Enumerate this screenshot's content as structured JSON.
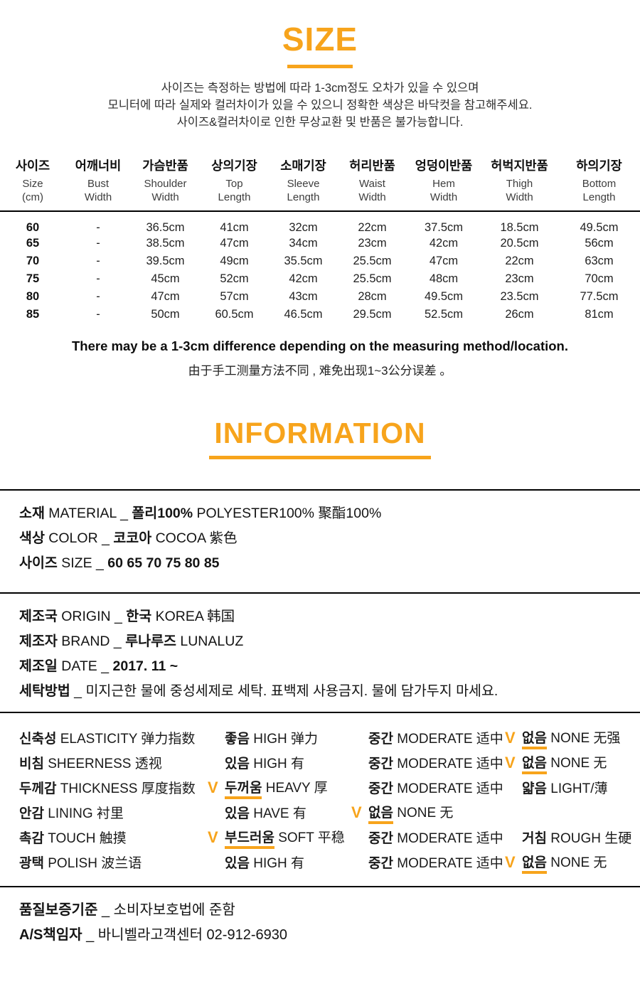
{
  "accent_color": "#F7A41C",
  "size_section": {
    "title": "SIZE",
    "notes": [
      "사이즈는 측정하는 방법에 따라 1-3cm정도 오차가 있을 수 있으며",
      "모니터에 따라 실제와 컬러차이가 있을 수 있으니 정확한 색상은 바닥컷을 참고해주세요.",
      "사이즈&컬러차이로 인한 무상교환 및 반품은 불가능합니다."
    ]
  },
  "size_table": {
    "columns": [
      {
        "ko": "사이즈",
        "en": [
          "Size",
          "(cm)"
        ]
      },
      {
        "ko": "어깨너비",
        "en": [
          "Bust",
          "Width"
        ]
      },
      {
        "ko": "가슴반품",
        "en": [
          "Shoulder",
          "Width"
        ]
      },
      {
        "ko": "상의기장",
        "en": [
          "Top",
          "Length"
        ]
      },
      {
        "ko": "소매기장",
        "en": [
          "Sleeve",
          "Length"
        ]
      },
      {
        "ko": "허리반품",
        "en": [
          "Waist",
          "Width"
        ]
      },
      {
        "ko": "엉덩이반품",
        "en": [
          "Hem",
          "Width"
        ]
      },
      {
        "ko": "허벅지반품",
        "en": [
          "Thigh",
          "Width"
        ]
      },
      {
        "ko": "하의기장",
        "en": [
          "Bottom",
          "Length"
        ]
      }
    ],
    "rows": [
      [
        "60",
        "-",
        "36.5cm",
        "41cm",
        "32cm",
        "22cm",
        "37.5cm",
        "18.5cm",
        "49.5cm"
      ],
      [
        "65",
        "-",
        "38.5cm",
        "47cm",
        "34cm",
        "23cm",
        "42cm",
        "20.5cm",
        "56cm"
      ],
      [
        "70",
        "-",
        "39.5cm",
        "49cm",
        "35.5cm",
        "25.5cm",
        "47cm",
        "22cm",
        "63cm"
      ],
      [
        "75",
        "-",
        "45cm",
        "52cm",
        "42cm",
        "25.5cm",
        "48cm",
        "23cm",
        "70cm"
      ],
      [
        "80",
        "-",
        "47cm",
        "57cm",
        "43cm",
        "28cm",
        "49.5cm",
        "23.5cm",
        "77.5cm"
      ],
      [
        "85",
        "-",
        "50cm",
        "60.5cm",
        "46.5cm",
        "29.5cm",
        "52.5cm",
        "26cm",
        "81cm"
      ]
    ],
    "note_en": "There may be a 1-3cm difference depending on the measuring method/location.",
    "note_zh": "由于手工测量方法不同 , 难免出现1~3公分误差 。"
  },
  "information_section": {
    "title": "INFORMATION",
    "block1_lines": [
      {
        "segments": [
          {
            "t": "소재",
            "b": true
          },
          {
            "t": " MATERIAL  _ ",
            "b": false
          },
          {
            "t": "폴리100%",
            "b": true
          },
          {
            "t": " POLYESTER100% 聚酯100%",
            "b": false
          }
        ]
      },
      {
        "segments": [
          {
            "t": "색상",
            "b": true
          },
          {
            "t": " COLOR _ ",
            "b": false
          },
          {
            "t": "코코아",
            "b": true
          },
          {
            "t": " COCOA 紫色",
            "b": false
          }
        ]
      },
      {
        "segments": [
          {
            "t": "사이즈",
            "b": true
          },
          {
            "t": " SIZE _ ",
            "b": false
          },
          {
            "t": "60 65 70 75 80 85",
            "b": true
          }
        ]
      }
    ],
    "block2_lines": [
      {
        "segments": [
          {
            "t": "제조국",
            "b": true
          },
          {
            "t": " ORIGIN _ ",
            "b": false
          },
          {
            "t": "한국",
            "b": true
          },
          {
            "t": " KOREA 韩国",
            "b": false
          }
        ]
      },
      {
        "segments": [
          {
            "t": "제조자",
            "b": true
          },
          {
            "t": " BRAND _ ",
            "b": false
          },
          {
            "t": "루나루즈",
            "b": true
          },
          {
            "t": " LUNALUZ",
            "b": false
          }
        ]
      },
      {
        "segments": [
          {
            "t": "제조일",
            "b": true
          },
          {
            "t": " DATE _ ",
            "b": false
          },
          {
            "t": "2017. 11 ~",
            "b": true
          }
        ]
      },
      {
        "segments": [
          {
            "t": "세탁방법",
            "b": true
          },
          {
            "t": " _ 미지근한 물에 중성세제로 세탁. 표백제 사용금지. 물에 담가두지 마세요.",
            "b": false
          }
        ]
      }
    ]
  },
  "properties": {
    "check_glyph": "V",
    "rows": [
      {
        "label": {
          "ko": "신축성",
          "rest": " ELASTICITY 弹力指数"
        },
        "options": [
          {
            "ko": "좋음",
            "rest": " HIGH 弹力",
            "checked": false
          },
          {
            "ko": "중간",
            "rest": " MODERATE 适中",
            "checked": false
          },
          {
            "ko": "없음",
            "rest": " NONE 无强",
            "checked": true
          }
        ]
      },
      {
        "label": {
          "ko": "비침",
          "rest": " SHEERNESS 透视"
        },
        "options": [
          {
            "ko": "있음",
            "rest": " HIGH 有",
            "checked": false
          },
          {
            "ko": "중간",
            "rest": " MODERATE 适中",
            "checked": false
          },
          {
            "ko": "없음",
            "rest": " NONE 无",
            "checked": true
          }
        ]
      },
      {
        "label": {
          "ko": "두께감",
          "rest": " THICKNESS 厚度指数"
        },
        "options": [
          {
            "ko": "두꺼움",
            "rest": " HEAVY 厚",
            "checked": true
          },
          {
            "ko": "중간",
            "rest": " MODERATE 适中",
            "checked": false
          },
          {
            "ko": "얇음",
            "rest": " LIGHT/薄",
            "checked": false
          }
        ]
      },
      {
        "label": {
          "ko": "안감",
          "rest": " LINING 衬里"
        },
        "options": [
          {
            "ko": "있음",
            "rest": " HAVE 有",
            "checked": false
          },
          {
            "ko": "없음",
            "rest": " NONE 无",
            "checked": true
          },
          null
        ]
      },
      {
        "label": {
          "ko": "촉감",
          "rest": " TOUCH 触摸"
        },
        "options": [
          {
            "ko": "부드러움",
            "rest": " SOFT 平稳",
            "checked": true
          },
          {
            "ko": "중간",
            "rest": " MODERATE 适中",
            "checked": false
          },
          {
            "ko": "거침",
            "rest": " ROUGH 生硬",
            "checked": false
          }
        ]
      },
      {
        "label": {
          "ko": "광택",
          "rest": " POLISH 波兰语"
        },
        "options": [
          {
            "ko": "있음",
            "rest": " HIGH 有",
            "checked": false
          },
          {
            "ko": "중간",
            "rest": " MODERATE 适中",
            "checked": false
          },
          {
            "ko": "없음",
            "rest": " NONE 无",
            "checked": true
          }
        ]
      }
    ]
  },
  "footer": {
    "lines": [
      {
        "segments": [
          {
            "t": "품질보증기준",
            "b": true
          },
          {
            "t": " _ 소비자보호법에 준함",
            "b": false
          }
        ]
      },
      {
        "segments": [
          {
            "t": "A/S책임자",
            "b": true
          },
          {
            "t": " _ 바니벨라고객센터 02-912-6930",
            "b": false
          }
        ]
      }
    ]
  }
}
